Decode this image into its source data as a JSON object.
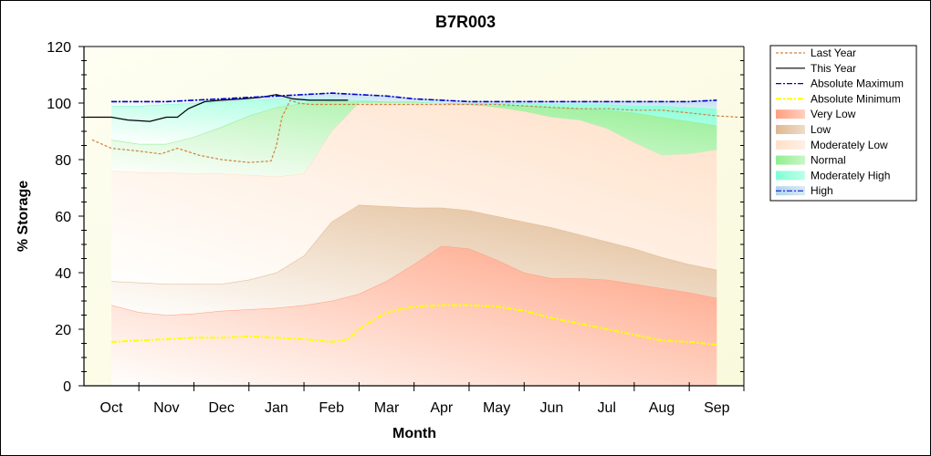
{
  "chart_data": {
    "type": "area",
    "title": "B7R003",
    "xlabel": "Month",
    "ylabel": "% Storage",
    "ylim": [
      0,
      120
    ],
    "yticks": [
      0,
      20,
      40,
      60,
      80,
      100,
      120
    ],
    "ytick_labels": [
      "0",
      "20",
      "40",
      "60",
      "80",
      "100",
      "120"
    ],
    "categories": [
      "Oct",
      "Nov",
      "Dec",
      "Jan",
      "Feb",
      "Mar",
      "Apr",
      "May",
      "Jun",
      "Jul",
      "Aug",
      "Sep"
    ],
    "x_positions": [
      0,
      1,
      2,
      3,
      4,
      5,
      6,
      7,
      8,
      9,
      10,
      11
    ],
    "legend_position": "right",
    "bands_x": [
      0,
      0.5,
      1,
      1.5,
      2,
      2.5,
      3,
      3.5,
      4,
      4.5,
      5,
      5.5,
      6,
      6.5,
      7,
      7.5,
      8,
      8.5,
      9,
      9.5,
      10,
      10.5,
      11
    ],
    "bands": [
      {
        "name": "Very Low",
        "color": "#ff9f80",
        "upper": [
          28.5,
          26,
          25,
          25.5,
          26.5,
          27,
          27.5,
          28.5,
          30,
          32.5,
          37,
          43,
          49.5,
          48.5,
          44.5,
          40,
          38,
          38,
          37.5,
          36,
          34.5,
          33,
          31
        ]
      },
      {
        "name": "Low",
        "color": "#e0b890",
        "upper": [
          37,
          36.5,
          36,
          36,
          36,
          37.5,
          40,
          46,
          58,
          64,
          63.5,
          63,
          63,
          62,
          60,
          58,
          56,
          53.5,
          51,
          48.5,
          45.5,
          43,
          41
        ]
      },
      {
        "name": "Moderately Low",
        "color": "#ffe0c8",
        "upper": [
          76,
          75.5,
          75.5,
          75,
          75,
          74.5,
          74,
          75,
          90,
          100,
          100,
          100,
          100,
          99.5,
          98.5,
          97,
          95,
          94,
          91,
          86,
          81.5,
          82,
          83.5
        ]
      },
      {
        "name": "Normal",
        "color": "#90ee90",
        "upper": [
          87,
          85.5,
          85.5,
          88,
          91.5,
          95.5,
          98.5,
          100,
          100.5,
          100.5,
          100.5,
          100.5,
          100,
          99.5,
          99,
          99,
          98.5,
          98,
          97.5,
          96.5,
          95,
          93.5,
          92
        ]
      },
      {
        "name": "Moderately High",
        "color": "#7fffd4",
        "upper": [
          99,
          99,
          99.5,
          100,
          100.5,
          101,
          101.5,
          101.5,
          101.5,
          101,
          100.5,
          100.5,
          100,
          100,
          100,
          100,
          99.5,
          99.5,
          99.5,
          99,
          99,
          98.5,
          98
        ]
      },
      {
        "name": "High",
        "color": "#b0d4ee",
        "upper": [
          100.5,
          100.5,
          100.5,
          101,
          101.5,
          102,
          102.5,
          103,
          103.5,
          103,
          102.5,
          101.5,
          101,
          100.5,
          100.5,
          100.5,
          100.5,
          100.5,
          100.5,
          100.5,
          100.5,
          100.5,
          101
        ]
      }
    ],
    "series": [
      {
        "name": "Last Year",
        "color": "#d08040",
        "style": "dashed",
        "x": [
          -0.35,
          0,
          0.5,
          0.9,
          1.2,
          1.6,
          2,
          2.5,
          2.9,
          3.0,
          3.1,
          3.25,
          3.4,
          3.6,
          4,
          5,
          6,
          7,
          7.5,
          8,
          8.5,
          9,
          9.5,
          10,
          10.5,
          11,
          11.4
        ],
        "y": [
          87,
          84,
          83,
          82,
          84,
          81.5,
          80,
          79,
          79.5,
          85,
          95,
          101,
          100,
          99.5,
          99.5,
          99.5,
          99.5,
          99.5,
          99,
          98.5,
          98,
          98,
          97.5,
          97.5,
          96.5,
          95.5,
          95
        ]
      },
      {
        "name": "This Year",
        "color": "#000000",
        "style": "solid",
        "x": [
          -0.45,
          0,
          0.3,
          0.7,
          1.0,
          1.2,
          1.4,
          1.7,
          2.0,
          2.4,
          2.7,
          3.0,
          3.3,
          3.6,
          4.0,
          4.3
        ],
        "y": [
          95,
          95,
          94,
          93.5,
          95,
          95,
          98,
          100.5,
          101,
          101.5,
          102,
          103,
          101.5,
          101,
          101,
          101
        ]
      },
      {
        "name": "Absolute Maximum",
        "color": "#0000cc",
        "style": "dashdot",
        "x": [
          0,
          0.5,
          1,
          1.5,
          2,
          2.5,
          3,
          3.5,
          4,
          4.5,
          5,
          5.5,
          6,
          6.5,
          7,
          7.5,
          8,
          8.5,
          9,
          9.5,
          10,
          10.5,
          11
        ],
        "y": [
          100.5,
          100.5,
          100.5,
          101,
          101.5,
          102,
          102.5,
          103,
          103.5,
          103,
          102.5,
          101.5,
          101,
          100.5,
          100.5,
          100.5,
          100.5,
          100.5,
          100.5,
          100.5,
          100.5,
          100.5,
          101
        ]
      },
      {
        "name": "Absolute Minimum",
        "color": "#ffff00",
        "style": "dashdot",
        "x": [
          0,
          0.5,
          1,
          1.5,
          2,
          2.5,
          3,
          3.5,
          4,
          4.3,
          4.5,
          5,
          5.5,
          6,
          6.5,
          7,
          7.5,
          8,
          8.5,
          9,
          9.5,
          10,
          10.5,
          11
        ],
        "y": [
          15.5,
          16,
          16.5,
          17,
          17,
          17.5,
          17,
          16.5,
          15.5,
          16.5,
          20,
          26,
          28,
          28.5,
          28.5,
          28,
          26.5,
          24,
          22,
          20,
          18,
          16,
          15.5,
          14.5
        ]
      }
    ],
    "legend": [
      {
        "label": "Last Year",
        "kind": "line",
        "color": "#d08040",
        "style": "dashed"
      },
      {
        "label": "This Year",
        "kind": "line",
        "color": "#000000",
        "style": "solid"
      },
      {
        "label": "Absolute Maximum",
        "kind": "line",
        "color": "#0000cc",
        "style": "dashdot"
      },
      {
        "label": "Absolute Minimum",
        "kind": "line",
        "color": "#ffff00",
        "style": "dashdot"
      },
      {
        "label": "Very Low",
        "kind": "band",
        "color": "#ff9f80"
      },
      {
        "label": "Low",
        "kind": "band",
        "color": "#e0b890"
      },
      {
        "label": "Moderately Low",
        "kind": "band",
        "color": "#ffe0c8"
      },
      {
        "label": "Normal",
        "kind": "band",
        "color": "#90ee90"
      },
      {
        "label": "Moderately High",
        "kind": "band",
        "color": "#7fffd4"
      },
      {
        "label": "High",
        "kind": "band",
        "color": "#b0d4ee",
        "line_color": "#0000cc"
      }
    ],
    "plot_background": "#fdfde8"
  }
}
